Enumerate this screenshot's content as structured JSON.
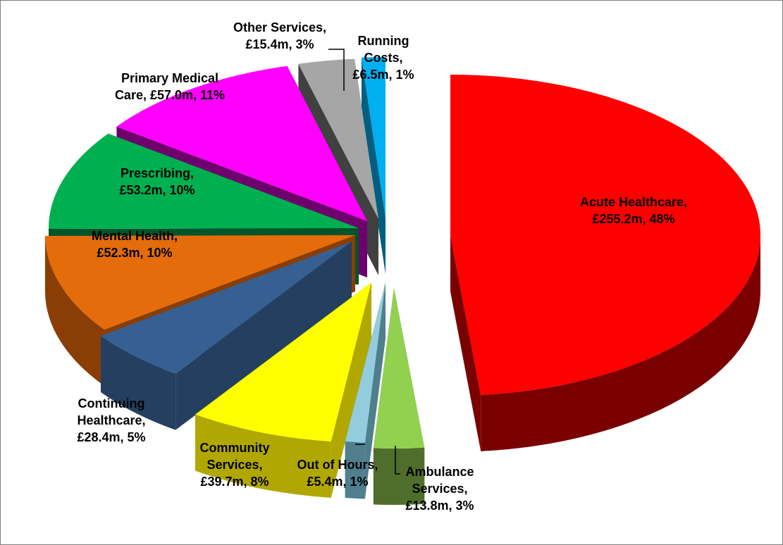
{
  "chart_data": {
    "type": "pie",
    "style": "3d-exploded",
    "title": "",
    "legend": "none",
    "slices": [
      {
        "name": "Acute Healthcare",
        "value": 255.2,
        "percent": 48,
        "color": "#ff0000",
        "side_color": "#7a0000",
        "label_lines": [
          "Acute Healthcare,",
          "£255.2m, 48%"
        ]
      },
      {
        "name": "Ambulance Services",
        "value": 13.8,
        "percent": 3,
        "color": "#92d050",
        "side_color": "#4f6e2b",
        "label_lines": [
          "Ambulance",
          "Services,",
          "£13.8m, 3%"
        ]
      },
      {
        "name": "Out of Hours",
        "value": 5.4,
        "percent": 1,
        "color": "#93cddd",
        "side_color": "#4f7f8d",
        "label_lines": [
          "Out of Hours,",
          "£5.4m, 1%"
        ]
      },
      {
        "name": "Community Services",
        "value": 39.7,
        "percent": 8,
        "color": "#ffff00",
        "side_color": "#b0a800",
        "label_lines": [
          "Community",
          "Services,",
          "£39.7m, 8%"
        ]
      },
      {
        "name": "Continuing Healthcare",
        "value": 28.4,
        "percent": 5,
        "color": "#376092",
        "side_color": "#243f60",
        "label_lines": [
          "Continuing",
          "Healthcare,",
          "£28.4m, 5%"
        ]
      },
      {
        "name": "Mental Health",
        "value": 52.3,
        "percent": 10,
        "color": "#e46c0a",
        "side_color": "#8a3e05",
        "label_lines": [
          "Mental Health,",
          "£52.3m, 10%"
        ]
      },
      {
        "name": "Prescribing",
        "value": 53.2,
        "percent": 10,
        "color": "#00b050",
        "side_color": "#00552a",
        "label_lines": [
          "Prescribing,",
          "£53.2m, 10%"
        ]
      },
      {
        "name": "Primary Medical Care",
        "value": 57.0,
        "percent": 11,
        "color": "#ff00ff",
        "side_color": "#6e006e",
        "label_lines": [
          "Primary Medical",
          "Care, £57.0m, 11%"
        ]
      },
      {
        "name": "Other Services",
        "value": 15.4,
        "percent": 3,
        "color": "#a6a6a6",
        "side_color": "#404040",
        "label_lines": [
          "Other Services,",
          "£15.4m, 3%"
        ]
      },
      {
        "name": "Running Costs",
        "value": 6.5,
        "percent": 1,
        "color": "#00b0f0",
        "side_color": "#005f80",
        "label_lines": [
          "Running",
          "Costs,",
          "£6.5m, 1%"
        ]
      }
    ]
  }
}
